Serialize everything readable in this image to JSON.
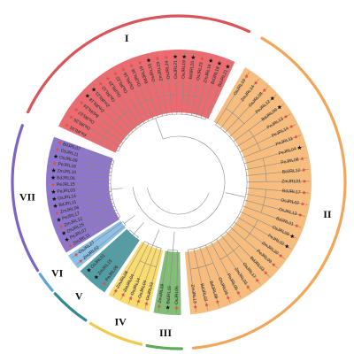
{
  "clades": [
    {
      "id": "I",
      "numeral": "I",
      "color": "#e8585c",
      "ring_color": "#d9555a",
      "angles": [
        -155,
        -65
      ],
      "leaves": [
        {
          "label": "PeJRL01",
          "marker": "circle"
        },
        {
          "label": "OsJRL26",
          "marker": "circle"
        },
        {
          "label": "OsJRL07",
          "marker": "circle"
        },
        {
          "label": "BdJRL24",
          "marker": "circle"
        },
        {
          "label": "ZmJRL18",
          "marker": "star"
        },
        {
          "label": "ZmJRL21",
          "marker": "star"
        },
        {
          "label": "OsJRL12",
          "marker": "circle"
        },
        {
          "label": "OsJRL20",
          "marker": "circle"
        },
        {
          "label": "OsJRL22",
          "marker": "circle"
        },
        {
          "label": "OsJRL16",
          "marker": "circle"
        },
        {
          "label": "OsJRL18",
          "marker": "circle"
        },
        {
          "label": "BdJRL19",
          "marker": "circle"
        },
        {
          "label": "OsJRL15",
          "marker": "star"
        },
        {
          "label": "ZmJRL19",
          "marker": "circle"
        },
        {
          "label": "OsJRL24",
          "marker": "circle"
        },
        {
          "label": "OsJRL21",
          "marker": "star"
        },
        {
          "label": "OsJRL19",
          "marker": "star"
        },
        {
          "label": "BdJRL20",
          "marker": "star"
        },
        {
          "label": "OsJRL23",
          "marker": "circle"
        },
        {
          "label": "ZmJRL16",
          "marker": "star"
        },
        {
          "label": "BdJRL18",
          "marker": "star"
        },
        {
          "label": "BdJRL21",
          "marker": "star"
        }
      ]
    },
    {
      "id": "II",
      "numeral": "II",
      "color": "#f6b46c",
      "ring_color": "#f2a65a",
      "angles": [
        -60,
        85
      ],
      "leaves": [
        {
          "label": "OsJRL10",
          "marker": "circle"
        },
        {
          "label": "ZmJRL14",
          "marker": "circle"
        },
        {
          "label": "OsJRL08",
          "marker": "circle"
        },
        {
          "label": "PeJRL12",
          "marker": "star"
        },
        {
          "label": "BdJRL09",
          "marker": "star"
        },
        {
          "label": "PeJRL13",
          "marker": "circle"
        },
        {
          "label": "PeJRL14",
          "marker": "circle"
        },
        {
          "label": "PeJRL11",
          "marker": "circle"
        },
        {
          "label": "PeJRL04",
          "marker": "star"
        },
        {
          "label": "PeJRL08",
          "marker": "circle"
        },
        {
          "label": "BdJRL12",
          "marker": "circle"
        },
        {
          "label": "ZmJRL01",
          "marker": "circle"
        },
        {
          "label": "BdJRL17",
          "marker": "circle"
        },
        {
          "label": "OsJRL02",
          "marker": "circle"
        },
        {
          "label": "OsJRL13",
          "marker": "circle"
        },
        {
          "label": "BdJRL01",
          "marker": "circle"
        },
        {
          "label": "OsJRL09",
          "marker": "star"
        },
        {
          "label": "PeJRL02",
          "marker": "star"
        },
        {
          "label": "ZmJRL20",
          "marker": "circle"
        },
        {
          "label": "PeJRL09",
          "marker": "circle"
        },
        {
          "label": "BdJRL03",
          "marker": "circle"
        },
        {
          "label": "OsJRL17",
          "marker": "circle"
        },
        {
          "label": "ZmJRL03",
          "marker": "circle"
        },
        {
          "label": "PeJRL05",
          "marker": "circle"
        },
        {
          "label": "OsJRL06",
          "marker": "circle"
        },
        {
          "label": "BdJRL08",
          "marker": "circle"
        },
        {
          "label": "BdJRL02",
          "marker": "circle"
        },
        {
          "label": "ZmJRL13",
          "marker": "circle"
        }
      ]
    },
    {
      "id": "III",
      "numeral": "III",
      "color": "#72b566",
      "ring_color": "#63a95a",
      "angles": [
        89,
        101
      ],
      "leaves": [
        {
          "label": "OsJRL05",
          "marker": "circle"
        },
        {
          "label": "BdJRL15",
          "marker": "star"
        },
        {
          "label": "ZmJRL09",
          "marker": "circle"
        }
      ]
    },
    {
      "id": "IV",
      "numeral": "IV",
      "color": "#f8d65c",
      "ring_color": "#f2c94c",
      "angles": [
        103,
        122
      ],
      "leaves": [
        {
          "label": "OsJRL03",
          "marker": "circle"
        },
        {
          "label": "OsJRL04",
          "marker": "circle"
        },
        {
          "label": "OsJRL14",
          "marker": "circle"
        },
        {
          "label": "ZmJRL04",
          "marker": "circle"
        },
        {
          "label": "ZmJRL08",
          "marker": "circle"
        }
      ]
    },
    {
      "id": "V",
      "numeral": "V",
      "color": "#3b8f98",
      "ring_color": "#2f8a94",
      "angles": [
        124,
        138
      ],
      "leaves": [
        {
          "label": "PeJRL06",
          "marker": "circle"
        },
        {
          "label": "ZmJRL15",
          "marker": "star"
        },
        {
          "label": "OsJRL01",
          "marker": "star"
        }
      ]
    },
    {
      "id": "VI",
      "numeral": "VI",
      "color": "#7cb7e0",
      "ring_color": "#5fa3d6",
      "angles": [
        139.5,
        146.5
      ],
      "leaves": [
        {
          "label": "ZmJRL02",
          "marker": "circle"
        },
        {
          "label": "OsJRL27",
          "marker": "circle"
        }
      ]
    },
    {
      "id": "VII",
      "numeral": "VII",
      "color": "#7e63c6",
      "ring_color": "#7e63c6",
      "angles": [
        148,
        200
      ],
      "leaves": [
        {
          "label": "ZmJRL11",
          "marker": "circle"
        },
        {
          "label": "PeJRL07",
          "marker": "star"
        },
        {
          "label": "OsJRL25",
          "marker": "star"
        },
        {
          "label": "ZmJRL12",
          "marker": "circle"
        },
        {
          "label": "PeJRL17",
          "marker": "star"
        },
        {
          "label": "ZmJRL06",
          "marker": "circle"
        },
        {
          "label": "BdJRL11",
          "marker": "star"
        },
        {
          "label": "OsJRL14",
          "marker": "star"
        },
        {
          "label": "PeJRL03",
          "marker": "star"
        },
        {
          "label": "PeJRL15",
          "marker": "circle"
        },
        {
          "label": "BdJRL06",
          "marker": "star"
        },
        {
          "label": "ZmJRL10",
          "marker": "star"
        },
        {
          "label": "PeJRL16",
          "marker": "circle"
        },
        {
          "label": "OsJRL09",
          "marker": "star"
        },
        {
          "label": "OsJRL11",
          "marker": "circle"
        },
        {
          "label": "BdJRL07",
          "marker": "circle"
        }
      ]
    }
  ],
  "marker_colors": {
    "circle": "#e84a3c",
    "star": "#111111"
  },
  "branch_color": "#8a8a8a"
}
